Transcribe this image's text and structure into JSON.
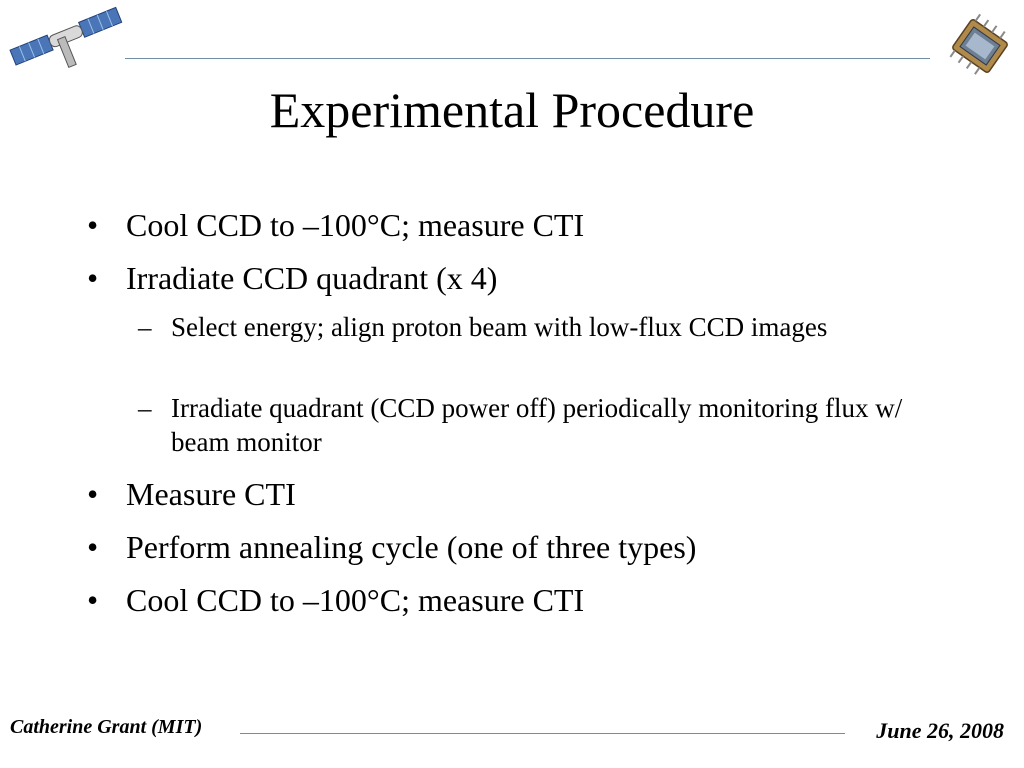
{
  "slide": {
    "title": "Experimental Procedure",
    "bullets": [
      {
        "text": "Cool CCD to –100°C; measure CTI"
      },
      {
        "text": "Irradiate CCD quadrant (x 4)"
      },
      {
        "text": "Measure CTI"
      },
      {
        "text": "Perform annealing cycle (one of three types)"
      },
      {
        "text": "Cool CCD to –100°C; measure CTI"
      }
    ],
    "sub_bullets": [
      {
        "text": "Select energy; align proton beam with low-flux CCD images"
      },
      {
        "text": "Irradiate quadrant (CCD power off) periodically monitoring flux w/ beam monitor"
      }
    ],
    "bullet_mark": "•",
    "sub_mark": "–"
  },
  "footer": {
    "author": "Catherine Grant (MIT)",
    "date": "June 26, 2008"
  },
  "colors": {
    "rule": "#6f8fa8"
  },
  "icons": {
    "top_left": "satellite-icon",
    "top_right": "ccd-chip-icon"
  }
}
